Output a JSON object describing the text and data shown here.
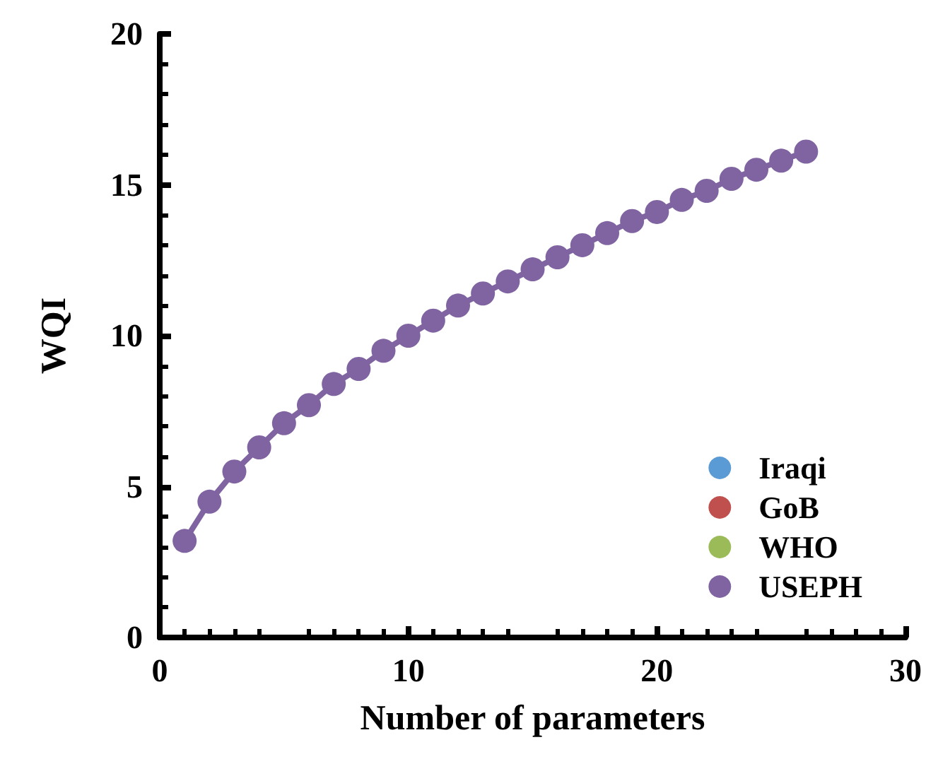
{
  "chart_data": {
    "type": "line",
    "xlabel": "Number of parameters",
    "ylabel": "WQI",
    "x": [
      1,
      2,
      3,
      4,
      5,
      6,
      7,
      8,
      9,
      10,
      11,
      12,
      13,
      14,
      15,
      16,
      17,
      18,
      19,
      20,
      21,
      22,
      23,
      24,
      25,
      26
    ],
    "series": [
      {
        "name": "Iraqi",
        "color": "#5b9bd5",
        "values": [
          null,
          null,
          null,
          null,
          null,
          null,
          null,
          null,
          null,
          null,
          null,
          null,
          null,
          null,
          null,
          null,
          null,
          null,
          null,
          null,
          null,
          null,
          null,
          null,
          null,
          null
        ]
      },
      {
        "name": "GoB",
        "color": "#c0504d",
        "values": [
          null,
          null,
          null,
          null,
          null,
          null,
          null,
          null,
          null,
          null,
          null,
          null,
          null,
          null,
          null,
          null,
          null,
          null,
          null,
          null,
          null,
          null,
          null,
          null,
          null,
          null
        ]
      },
      {
        "name": "WHO",
        "color": "#9bbb59",
        "values": [
          null,
          null,
          null,
          null,
          null,
          null,
          null,
          null,
          null,
          null,
          null,
          null,
          null,
          null,
          null,
          null,
          null,
          null,
          null,
          null,
          null,
          null,
          null,
          null,
          null,
          null
        ]
      },
      {
        "name": "USEPH",
        "color": "#8064a2",
        "values": [
          3.2,
          4.5,
          5.5,
          6.3,
          7.1,
          7.7,
          8.4,
          8.9,
          9.5,
          10.0,
          10.5,
          11.0,
          11.4,
          11.8,
          12.2,
          12.6,
          13.0,
          13.4,
          13.8,
          14.1,
          14.5,
          14.8,
          15.2,
          15.5,
          15.8,
          16.1
        ]
      }
    ],
    "xlim": [
      0,
      30
    ],
    "xticks": [
      0,
      10,
      20,
      30
    ],
    "ylim": [
      0,
      20
    ],
    "yticks": [
      0,
      5,
      10,
      15,
      20
    ],
    "legend": "bottom right",
    "marker": "circle",
    "line_style": "solid",
    "grid": false
  }
}
